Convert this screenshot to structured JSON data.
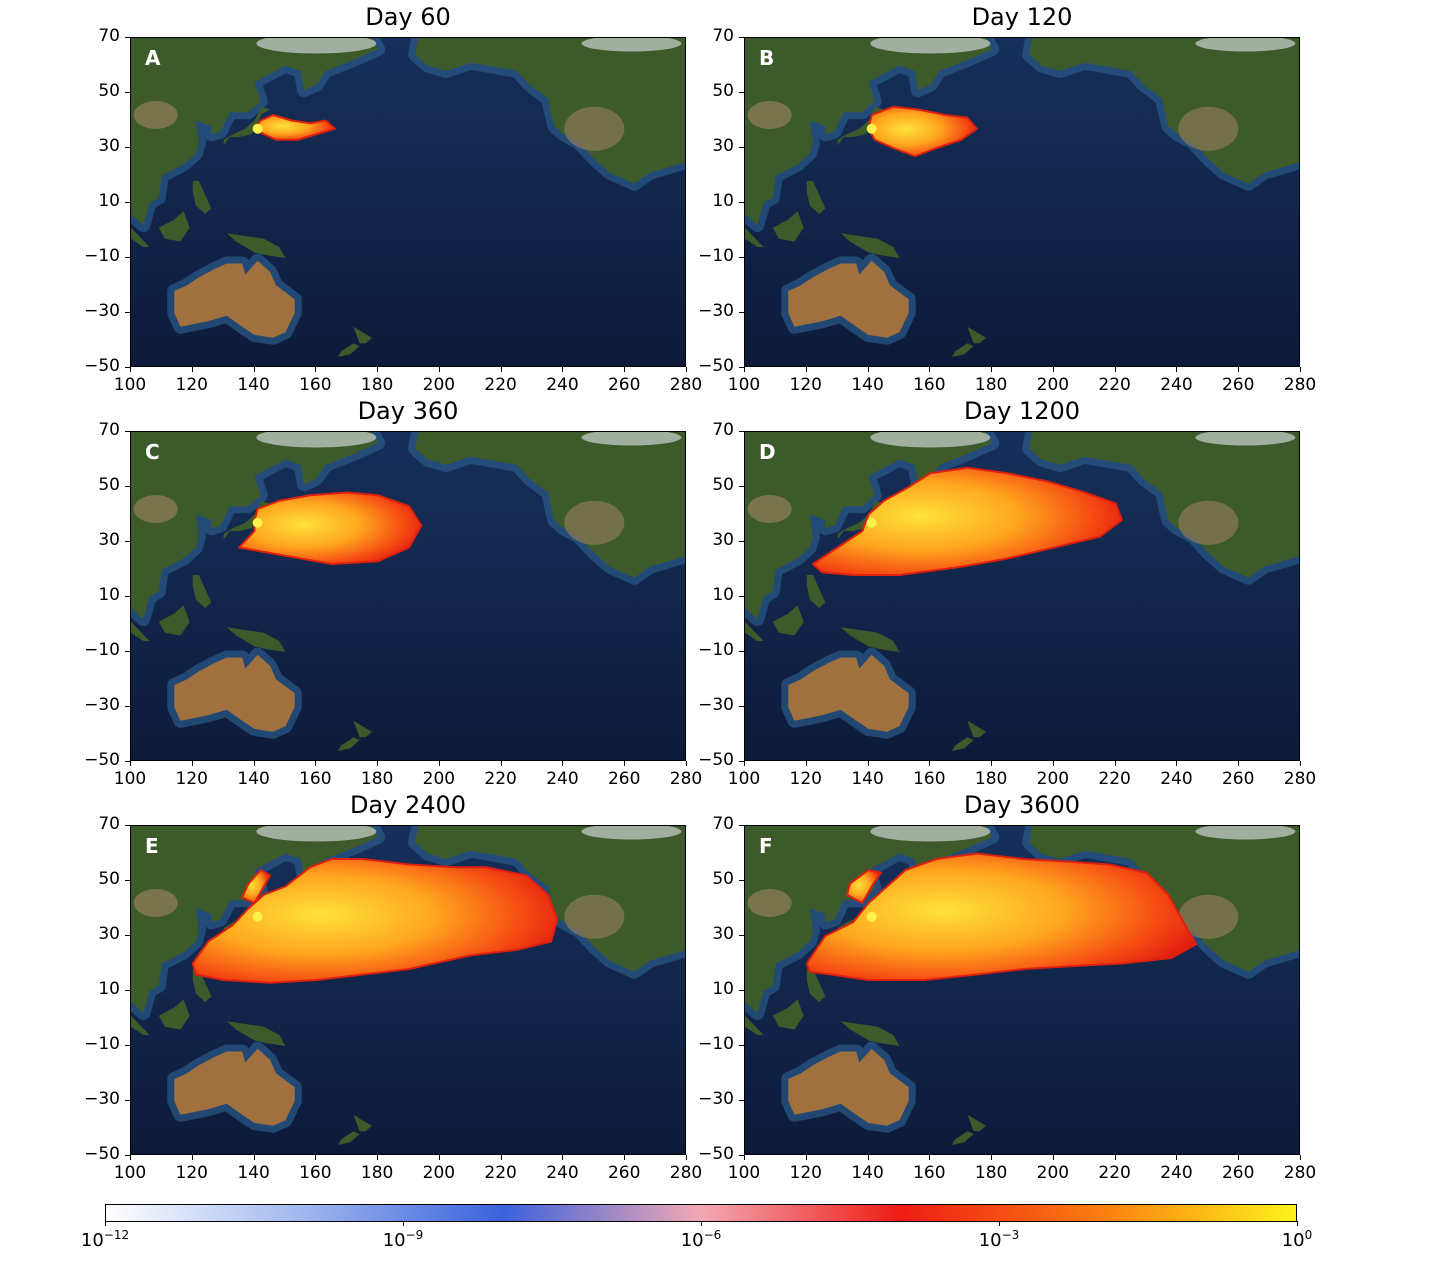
{
  "panels": [
    {
      "title": "Day 60",
      "letter": "A",
      "spread": 1
    },
    {
      "title": "Day 120",
      "letter": "B",
      "spread": 2
    },
    {
      "title": "Day 360",
      "letter": "C",
      "spread": 3
    },
    {
      "title": "Day 1200",
      "letter": "D",
      "spread": 4
    },
    {
      "title": "Day 2400",
      "letter": "E",
      "spread": 5
    },
    {
      "title": "Day 3600",
      "letter": "F",
      "spread": 6
    }
  ],
  "axes": {
    "x_ticks": [
      "100",
      "120",
      "140",
      "160",
      "180",
      "200",
      "220",
      "240",
      "260",
      "280"
    ],
    "y_ticks": [
      "70",
      "50",
      "30",
      "10",
      "−10",
      "−30",
      "−50"
    ],
    "xlim": [
      100,
      280
    ],
    "ylim": [
      -50,
      70
    ]
  },
  "colorbar": {
    "labels": [
      {
        "base": "10",
        "exp": "−12"
      },
      {
        "base": "10",
        "exp": "−9"
      },
      {
        "base": "10",
        "exp": "−6"
      },
      {
        "base": "10",
        "exp": "−3"
      },
      {
        "base": "10",
        "exp": "0"
      }
    ],
    "colors": [
      "#ffffff",
      "#9fb6ee",
      "#3a62dd",
      "#f2a8b4",
      "#ee1c14",
      "#fb7b10",
      "#fff21c"
    ]
  },
  "colors": {
    "ocean": "#0d1a3a",
    "ocean_shallow": "#2a5a8a",
    "land": "#3d5a2a",
    "desert": "#a0703f",
    "ice": "#d8dde0"
  }
}
